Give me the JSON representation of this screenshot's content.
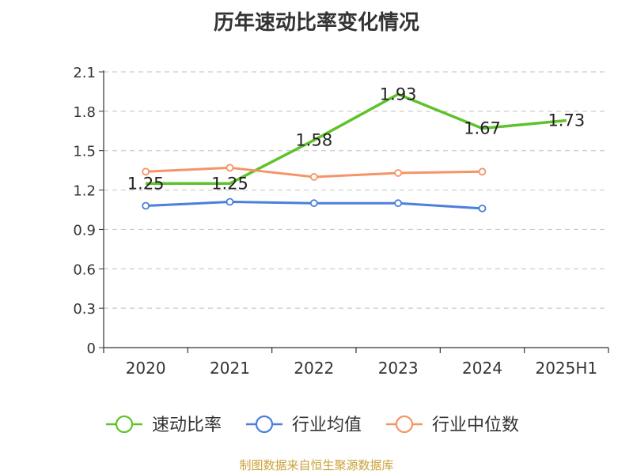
{
  "chart_data": {
    "type": "line",
    "title": "历年速动比率变化情况",
    "categories": [
      "2020",
      "2021",
      "2022",
      "2023",
      "2024",
      "2025H1"
    ],
    "ylim": [
      0,
      2.1
    ],
    "yticks": [
      "0",
      "0.3",
      "0.6",
      "0.9",
      "1.2",
      "1.5",
      "1.8",
      "2.1"
    ],
    "grid": true,
    "legend_position": "bottom",
    "series": [
      {
        "name": "速动比率",
        "color": "#5ec32b",
        "values": [
          1.25,
          1.25,
          1.58,
          1.93,
          1.67,
          1.73
        ],
        "labels": [
          "1.25",
          "1.25",
          "1.58",
          "1.93",
          "1.67",
          "1.73"
        ],
        "markers": false
      },
      {
        "name": "行业均值",
        "color": "#4a7fdc",
        "values": [
          1.08,
          1.11,
          1.1,
          1.1,
          1.06,
          null
        ],
        "markers": true
      },
      {
        "name": "行业中位数",
        "color": "#f59467",
        "values": [
          1.34,
          1.37,
          1.3,
          1.33,
          1.34,
          null
        ],
        "markers": true
      }
    ]
  },
  "source": "制图数据来自恒生聚源数据库"
}
